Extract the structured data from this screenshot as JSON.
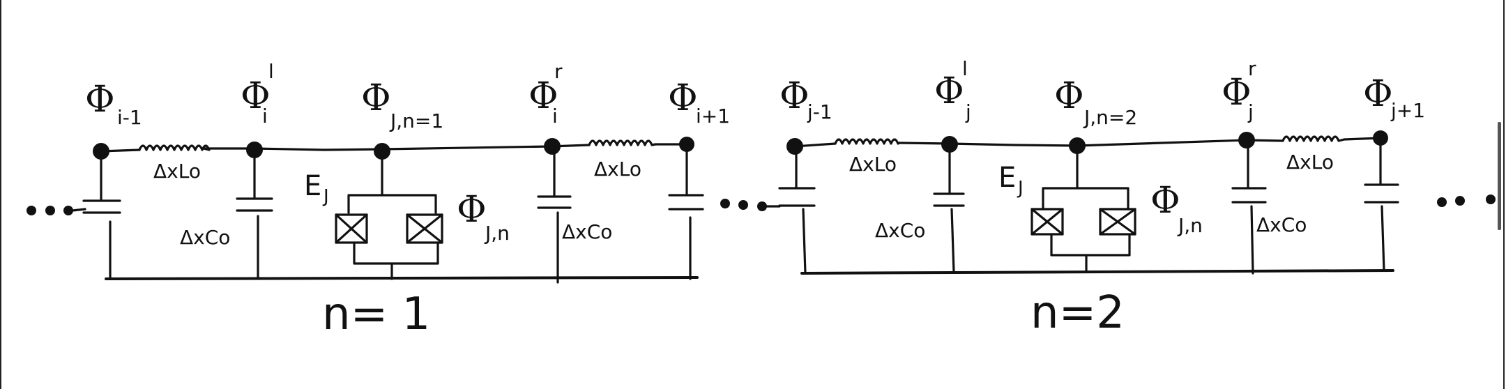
{
  "flux_labels": {
    "phi": "Φ",
    "i_minus_1": "i-1",
    "i": "i",
    "i_plus_1": "i+1",
    "J_n1": "J,n=1",
    "J_n": "J,n",
    "j_minus_1": "j-1",
    "j": "j",
    "j_plus_1": "j+1",
    "J_n2": "J,n=2",
    "left_sup": "l",
    "right_sup": "r"
  },
  "components": {
    "inductor": "ΔxLo",
    "capacitor": "ΔxCo",
    "josephson_E": "E",
    "josephson_sub": "J"
  },
  "cells": [
    {
      "label": "n= 1"
    },
    {
      "label": "n=2"
    }
  ],
  "ellipsis": "..."
}
